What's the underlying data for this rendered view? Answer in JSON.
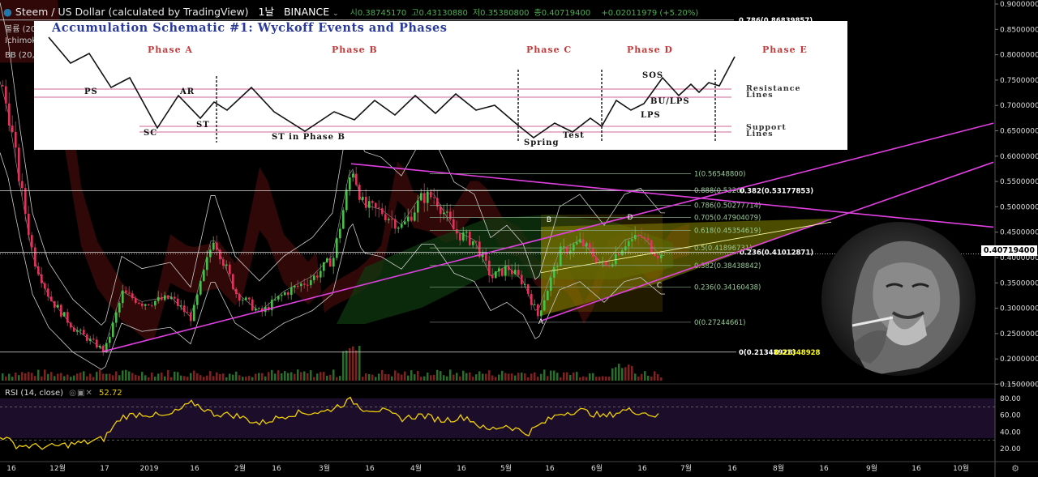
{
  "header": {
    "symbol": "Steem / US Dollar (calculated by TradingView)",
    "interval": "1날",
    "exchange": "BINANCE",
    "open": "시0.38745170",
    "high": "고0.43130880",
    "low": "저0.35380800",
    "close": "종0.40719400",
    "change": "+0.02011979 (+5.20%)"
  },
  "indicators": {
    "volume": "볼륨 (20",
    "ichimoku": "Ichimoku",
    "bb": "BB (20,"
  },
  "rsi": {
    "label": "RSI (14, close)",
    "value": "52.72"
  },
  "last_price": "0.40719400",
  "axis": {
    "price_ticks": [
      "0.90000000",
      "0.85000000",
      "0.80000000",
      "0.75000000",
      "0.70000000",
      "0.65000000",
      "0.60000000",
      "0.55000000",
      "0.50000000",
      "0.45000000",
      "0.40000000",
      "0.35000000",
      "0.30000000",
      "0.25000000",
      "0.20000000",
      "0.15000000"
    ],
    "rsi_ticks": [
      "80.00",
      "60.00",
      "40.00",
      "20.00"
    ],
    "time_labels": [
      "16",
      "12월",
      "17",
      "2019",
      "16",
      "2월",
      "16",
      "3월",
      "16",
      "4월",
      "16",
      "5월",
      "16",
      "6월",
      "16",
      "7월",
      "16",
      "8월",
      "16",
      "9월",
      "16",
      "10월"
    ]
  },
  "fib_labels": [
    "1(0.56548800)",
    "0.888(0.53260",
    "0.786(0.50277714)",
    "0.705(0.47904079)",
    "0.618(0.45354619)",
    "0.5(0.41896731)",
    "0.382(0.38438842)",
    "0.236(0.34160438)",
    "0(0.27244661)"
  ],
  "fib2_labels": [
    "0.786(0.86839857)",
    "0.382(0.53177853)",
    "0.236(0.41012871)",
    "0(0.21348928)"
  ],
  "fib2_extra": "0.21348928",
  "points": [
    "A",
    "B",
    "C",
    "D"
  ],
  "inset": {
    "title": "Accumulation Schematic #1: Wyckoff Events and Phases",
    "phases": [
      "Phase A",
      "Phase B",
      "Phase C",
      "Phase D",
      "Phase E"
    ],
    "events": {
      "ps": "PS",
      "ar": "AR",
      "sc": "SC",
      "st": "ST",
      "st_b": "ST in Phase B",
      "spring": "Spring",
      "test": "Test",
      "sos": "SOS",
      "bu": "BU/LPS",
      "lps": "LPS"
    },
    "resistance": [
      "Resistance",
      "Lines"
    ],
    "support": [
      "Support",
      "Lines"
    ]
  },
  "chart_data": {
    "type": "candlestick",
    "title": "Steem / US Dollar",
    "y_range": [
      0.15,
      0.9
    ],
    "last_close": 0.407194,
    "fib_levels": [
      0.565488,
      0.532603,
      0.50277714,
      0.47904079,
      0.45354619,
      0.41896731,
      0.38438842,
      0.34160438,
      0.27244661
    ],
    "fib2_levels": [
      0.86839857,
      0.53177853,
      0.41012871,
      0.21348928
    ],
    "rsi_last": 52.72,
    "rsi_bands": [
      70,
      30
    ]
  }
}
